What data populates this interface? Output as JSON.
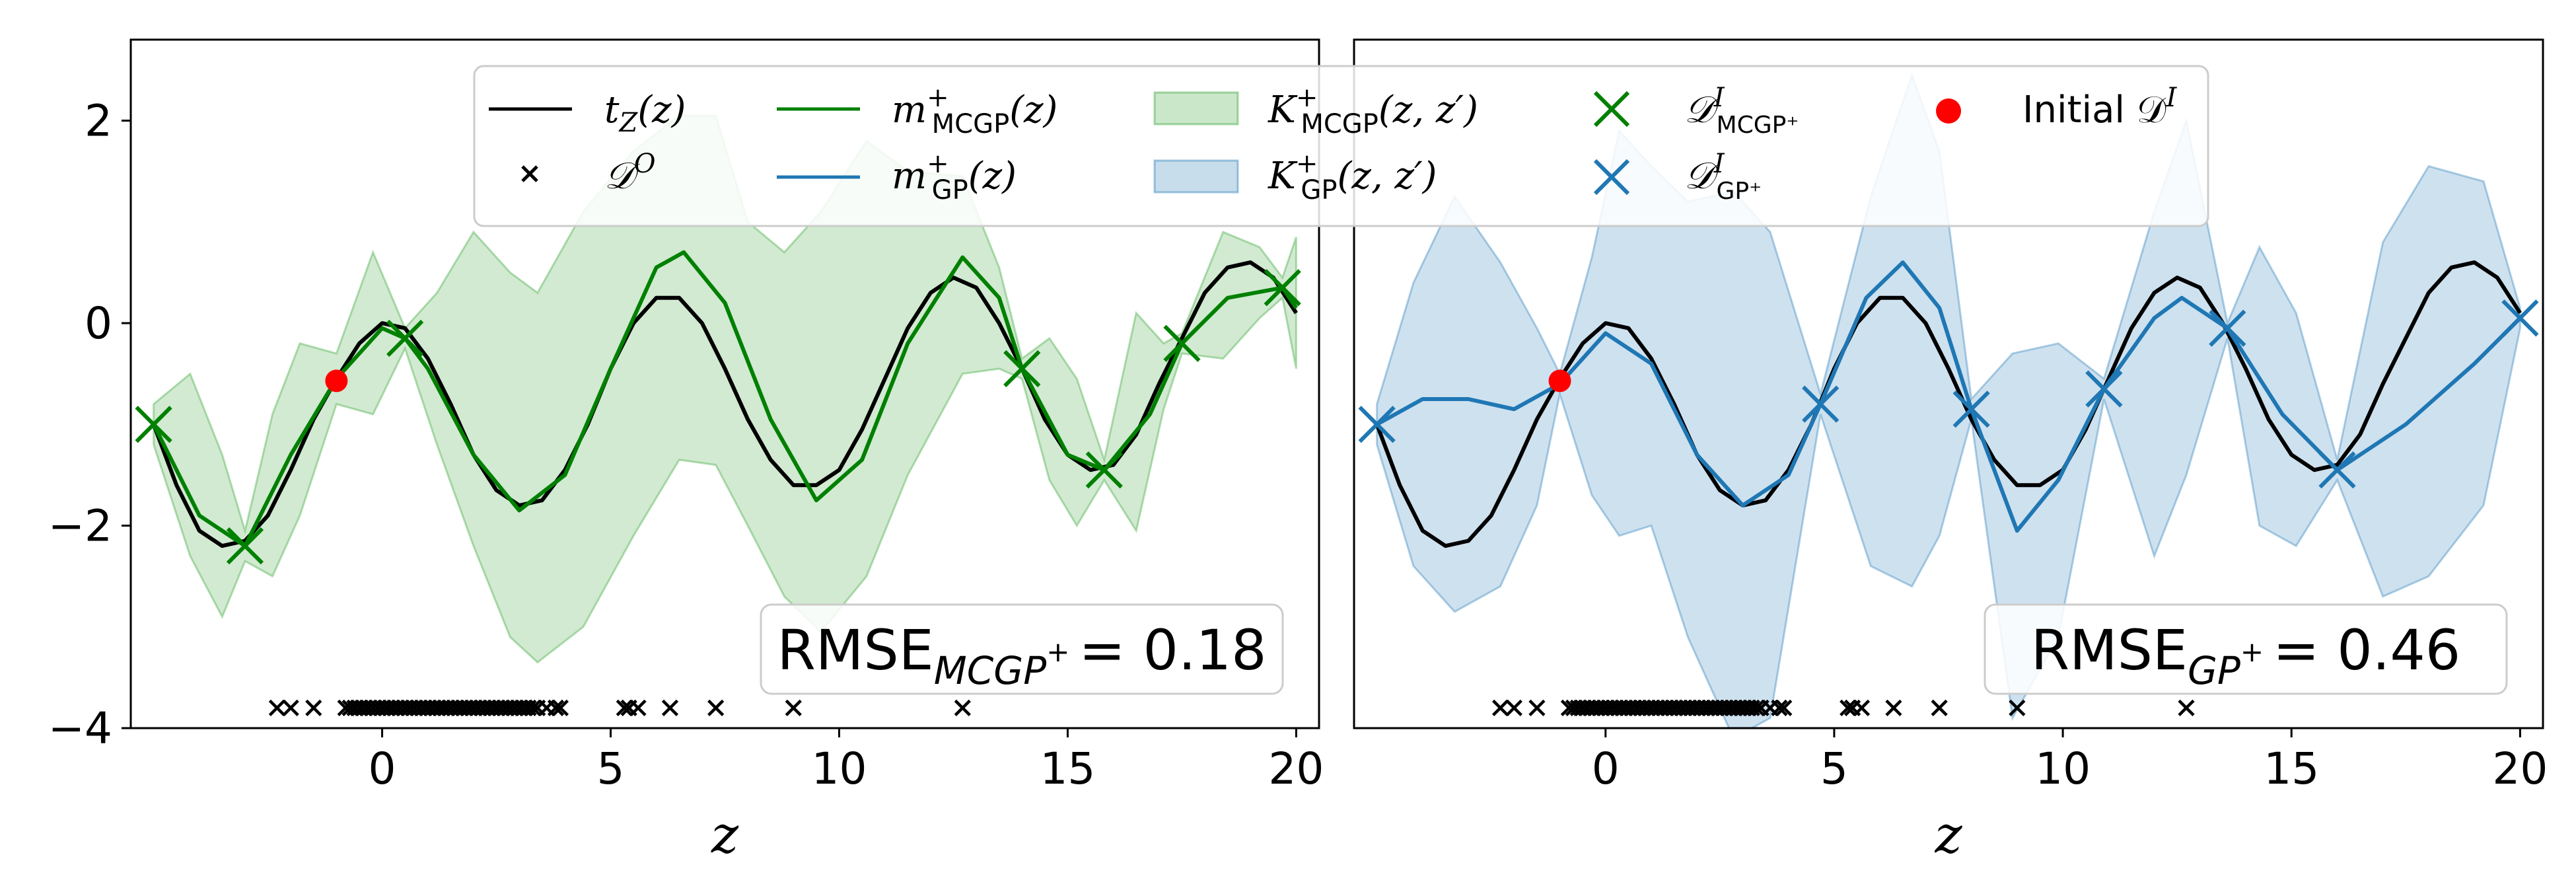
{
  "chart_data": [
    {
      "type": "line",
      "panel": "MCGP",
      "xlabel": "z",
      "ylabel": "",
      "xlim": [
        -5.5,
        20.5
      ],
      "ylim": [
        -4,
        2.8
      ],
      "xticks": [
        0,
        5,
        10,
        15,
        20
      ],
      "yticks": [
        -4,
        -2,
        0,
        2
      ],
      "xtick_labels": [
        "0",
        "5",
        "10",
        "15",
        "20"
      ],
      "ytick_labels": [
        "−4",
        "−2",
        "0",
        "2"
      ],
      "grid": false,
      "rmse": {
        "label": "RMSE",
        "sub": "MCGP",
        "sup": "+",
        "value": "= 0.18"
      },
      "true_fn_color": "#000000",
      "mean_color": "#008000",
      "band_color": "#2ca02c",
      "queries": [
        [
          -5,
          -1.0
        ],
        [
          -3,
          -2.2
        ],
        [
          0.5,
          -0.15
        ],
        [
          14,
          -0.45
        ],
        [
          15.8,
          -1.45
        ],
        [
          17.5,
          -0.2
        ],
        [
          19.7,
          0.35
        ]
      ],
      "mean": [
        [
          -5,
          -1.0
        ],
        [
          -4,
          -1.9
        ],
        [
          -3,
          -2.2
        ],
        [
          -2,
          -1.3
        ],
        [
          -1,
          -0.55
        ],
        [
          0,
          -0.05
        ],
        [
          0.5,
          -0.15
        ],
        [
          1,
          -0.45
        ],
        [
          2,
          -1.3
        ],
        [
          3,
          -1.85
        ],
        [
          4,
          -1.5
        ],
        [
          5,
          -0.45
        ],
        [
          6,
          0.55
        ],
        [
          6.6,
          0.7
        ],
        [
          7.5,
          0.2
        ],
        [
          8.5,
          -0.95
        ],
        [
          9.5,
          -1.75
        ],
        [
          10.5,
          -1.35
        ],
        [
          11.5,
          -0.2
        ],
        [
          12.7,
          0.65
        ],
        [
          13.5,
          0.25
        ],
        [
          14,
          -0.45
        ],
        [
          15,
          -1.3
        ],
        [
          15.8,
          -1.45
        ],
        [
          16.8,
          -0.9
        ],
        [
          17.5,
          -0.2
        ],
        [
          18.5,
          0.25
        ],
        [
          19.7,
          0.35
        ],
        [
          20,
          0.15
        ]
      ],
      "band_upper": [
        [
          -5,
          -0.8
        ],
        [
          -4.2,
          -0.5
        ],
        [
          -3.5,
          -1.3
        ],
        [
          -3,
          -2.05
        ],
        [
          -2.4,
          -0.9
        ],
        [
          -1.8,
          -0.2
        ],
        [
          -1,
          -0.3
        ],
        [
          -0.2,
          0.7
        ],
        [
          0.5,
          -0.05
        ],
        [
          1.2,
          0.3
        ],
        [
          2,
          0.9
        ],
        [
          2.8,
          0.5
        ],
        [
          3.4,
          0.3
        ],
        [
          4.4,
          1.1
        ],
        [
          5.5,
          1.7
        ],
        [
          6.5,
          2.05
        ],
        [
          7.3,
          2.05
        ],
        [
          8,
          1.0
        ],
        [
          8.8,
          0.7
        ],
        [
          9.6,
          1.1
        ],
        [
          10.6,
          1.8
        ],
        [
          11.5,
          1.5
        ],
        [
          12.7,
          1.45
        ],
        [
          13.5,
          0.55
        ],
        [
          14,
          -0.35
        ],
        [
          14.6,
          -0.15
        ],
        [
          15.2,
          -0.55
        ],
        [
          15.8,
          -1.35
        ],
        [
          16.5,
          0.1
        ],
        [
          17.1,
          -0.2
        ],
        [
          17.5,
          -0.1
        ],
        [
          18.4,
          0.9
        ],
        [
          19.2,
          0.75
        ],
        [
          19.7,
          0.45
        ],
        [
          20,
          0.85
        ]
      ],
      "band_lower": [
        [
          20,
          -0.45
        ],
        [
          19.7,
          0.25
        ],
        [
          19.2,
          0.05
        ],
        [
          18.4,
          -0.35
        ],
        [
          17.5,
          -0.3
        ],
        [
          17.1,
          -0.85
        ],
        [
          16.5,
          -2.05
        ],
        [
          15.8,
          -1.55
        ],
        [
          15.2,
          -2.0
        ],
        [
          14.6,
          -1.55
        ],
        [
          14,
          -0.55
        ],
        [
          13.5,
          -0.45
        ],
        [
          12.7,
          -0.5
        ],
        [
          11.5,
          -1.5
        ],
        [
          10.6,
          -2.5
        ],
        [
          9.6,
          -3.05
        ],
        [
          8.8,
          -2.7
        ],
        [
          8,
          -2.0
        ],
        [
          7.3,
          -1.4
        ],
        [
          6.5,
          -1.35
        ],
        [
          5.5,
          -2.1
        ],
        [
          4.4,
          -3.0
        ],
        [
          3.4,
          -3.35
        ],
        [
          2.8,
          -3.1
        ],
        [
          2,
          -2.2
        ],
        [
          1.2,
          -1.2
        ],
        [
          0.5,
          -0.25
        ],
        [
          -0.2,
          -0.9
        ],
        [
          -1,
          -0.8
        ],
        [
          -1.8,
          -1.9
        ],
        [
          -2.4,
          -2.5
        ],
        [
          -3,
          -2.35
        ],
        [
          -3.5,
          -2.9
        ],
        [
          -4.2,
          -2.3
        ],
        [
          -5,
          -1.2
        ]
      ]
    },
    {
      "type": "line",
      "panel": "GP",
      "xlabel": "z",
      "ylabel": "",
      "xlim": [
        -5.5,
        20.5
      ],
      "ylim": [
        -4,
        2.8
      ],
      "xticks": [
        0,
        5,
        10,
        15,
        20
      ],
      "xtick_labels": [
        "0",
        "5",
        "10",
        "15",
        "20"
      ],
      "grid": false,
      "rmse": {
        "label": "RMSE",
        "sub": "GP",
        "sup": "+",
        "value": "= 0.46"
      },
      "true_fn_color": "#000000",
      "mean_color": "#1f77b4",
      "band_color": "#1f77b4",
      "queries": [
        [
          -5,
          -1.0
        ],
        [
          4.7,
          -0.8
        ],
        [
          8.0,
          -0.85
        ],
        [
          10.9,
          -0.65
        ],
        [
          13.6,
          -0.05
        ],
        [
          16,
          -1.45
        ],
        [
          20,
          0.05
        ]
      ],
      "mean": [
        [
          -5,
          -1.0
        ],
        [
          -4,
          -0.75
        ],
        [
          -3,
          -0.75
        ],
        [
          -2,
          -0.85
        ],
        [
          -1,
          -0.6
        ],
        [
          0,
          -0.1
        ],
        [
          1,
          -0.4
        ],
        [
          2,
          -1.3
        ],
        [
          3,
          -1.8
        ],
        [
          4,
          -1.5
        ],
        [
          4.7,
          -0.8
        ],
        [
          5.7,
          0.25
        ],
        [
          6.5,
          0.6
        ],
        [
          7.3,
          0.15
        ],
        [
          8.0,
          -0.85
        ],
        [
          9,
          -2.05
        ],
        [
          9.9,
          -1.55
        ],
        [
          10.9,
          -0.65
        ],
        [
          12,
          0.05
        ],
        [
          12.6,
          0.25
        ],
        [
          13.6,
          -0.05
        ],
        [
          14.8,
          -0.9
        ],
        [
          16,
          -1.45
        ],
        [
          17.5,
          -1.0
        ],
        [
          19,
          -0.4
        ],
        [
          20,
          0.05
        ]
      ],
      "band_upper": [
        [
          -5,
          -0.8
        ],
        [
          -4.2,
          0.4
        ],
        [
          -3.3,
          1.25
        ],
        [
          -2.3,
          0.6
        ],
        [
          -1.5,
          -0.05
        ],
        [
          -1,
          -0.5
        ],
        [
          -0.3,
          0.65
        ],
        [
          0.3,
          1.9
        ],
        [
          1.0,
          1.55
        ],
        [
          1.8,
          1.2
        ],
        [
          2.8,
          1.3
        ],
        [
          3.6,
          0.9
        ],
        [
          4.7,
          -0.7
        ],
        [
          5.8,
          1.25
        ],
        [
          6.7,
          2.45
        ],
        [
          7.3,
          1.7
        ],
        [
          8.0,
          -0.75
        ],
        [
          8.9,
          -0.3
        ],
        [
          9.9,
          -0.2
        ],
        [
          10.9,
          -0.55
        ],
        [
          12,
          1.1
        ],
        [
          12.7,
          2.0
        ],
        [
          13.6,
          0.0
        ],
        [
          14.3,
          0.75
        ],
        [
          15.1,
          0.1
        ],
        [
          16,
          -1.35
        ],
        [
          17,
          0.8
        ],
        [
          18,
          1.55
        ],
        [
          19.2,
          1.4
        ],
        [
          20,
          0.15
        ]
      ],
      "band_lower": [
        [
          20,
          -0.05
        ],
        [
          19.2,
          -1.8
        ],
        [
          18,
          -2.5
        ],
        [
          17,
          -2.7
        ],
        [
          16,
          -1.55
        ],
        [
          15.1,
          -2.2
        ],
        [
          14.3,
          -2.0
        ],
        [
          13.6,
          -0.15
        ],
        [
          12.7,
          -1.5
        ],
        [
          12,
          -2.3
        ],
        [
          10.9,
          -0.75
        ],
        [
          9.9,
          -3.1
        ],
        [
          8.9,
          -3.9
        ],
        [
          8.0,
          -0.95
        ],
        [
          7.3,
          -2.1
        ],
        [
          6.7,
          -2.6
        ],
        [
          5.8,
          -2.4
        ],
        [
          4.7,
          -0.9
        ],
        [
          3.6,
          -3.9
        ],
        [
          2.8,
          -4.1
        ],
        [
          1.8,
          -3.1
        ],
        [
          1.0,
          -2.0
        ],
        [
          0.3,
          -2.1
        ],
        [
          -0.3,
          -1.7
        ],
        [
          -1,
          -0.7
        ],
        [
          -1.5,
          -1.8
        ],
        [
          -2.3,
          -2.6
        ],
        [
          -3.3,
          -2.85
        ],
        [
          -4.2,
          -2.4
        ],
        [
          -5,
          -1.2
        ]
      ]
    }
  ],
  "true_fn": [
    [
      -5,
      -1.0
    ],
    [
      -4.5,
      -1.6
    ],
    [
      -4,
      -2.05
    ],
    [
      -3.5,
      -2.2
    ],
    [
      -3,
      -2.15
    ],
    [
      -2.5,
      -1.9
    ],
    [
      -2,
      -1.45
    ],
    [
      -1.5,
      -0.95
    ],
    [
      -1,
      -0.55
    ],
    [
      -0.5,
      -0.2
    ],
    [
      0,
      0.0
    ],
    [
      0.5,
      -0.05
    ],
    [
      1,
      -0.35
    ],
    [
      1.5,
      -0.8
    ],
    [
      2,
      -1.3
    ],
    [
      2.5,
      -1.65
    ],
    [
      3,
      -1.8
    ],
    [
      3.5,
      -1.75
    ],
    [
      4,
      -1.45
    ],
    [
      4.5,
      -1.0
    ],
    [
      5,
      -0.45
    ],
    [
      5.5,
      0.0
    ],
    [
      6,
      0.25
    ],
    [
      6.5,
      0.25
    ],
    [
      7,
      0.0
    ],
    [
      7.5,
      -0.45
    ],
    [
      8,
      -0.95
    ],
    [
      8.5,
      -1.35
    ],
    [
      9,
      -1.6
    ],
    [
      9.5,
      -1.6
    ],
    [
      10,
      -1.45
    ],
    [
      10.5,
      -1.05
    ],
    [
      11,
      -0.55
    ],
    [
      11.5,
      -0.05
    ],
    [
      12,
      0.3
    ],
    [
      12.5,
      0.45
    ],
    [
      13,
      0.35
    ],
    [
      13.5,
      0.0
    ],
    [
      14,
      -0.45
    ],
    [
      14.5,
      -0.95
    ],
    [
      15,
      -1.3
    ],
    [
      15.5,
      -1.45
    ],
    [
      16,
      -1.4
    ],
    [
      16.5,
      -1.1
    ],
    [
      17,
      -0.6
    ],
    [
      17.5,
      -0.15
    ],
    [
      18,
      0.3
    ],
    [
      18.5,
      0.55
    ],
    [
      19,
      0.6
    ],
    [
      19.5,
      0.45
    ],
    [
      20,
      0.1
    ]
  ],
  "initial_point": [
    -1,
    -0.57
  ],
  "observations": [
    -2.3,
    -2.0,
    -1.5,
    -0.8,
    -0.7,
    -0.6,
    -0.5,
    -0.4,
    -0.3,
    -0.2,
    -0.1,
    0,
    0.1,
    0.2,
    0.3,
    0.4,
    0.5,
    0.6,
    0.7,
    0.8,
    0.9,
    1.0,
    1.1,
    1.2,
    1.3,
    1.4,
    1.5,
    1.6,
    1.7,
    1.8,
    1.9,
    2.0,
    2.1,
    2.2,
    2.3,
    2.4,
    2.5,
    2.6,
    2.7,
    2.8,
    2.9,
    3.0,
    3.1,
    3.2,
    3.3,
    3.4,
    3.6,
    3.8,
    3.9,
    5.3,
    5.4,
    5.6,
    6.3,
    7.3,
    9.0,
    12.7
  ],
  "obs_y": -3.8,
  "legend": {
    "tz": "t",
    "tz_sub": "Z",
    "tz_args": "(z)",
    "do": "𝒟",
    "do_sup": "O",
    "m_mcgp": "m",
    "m_mcgp_sup": "+",
    "m_mcgp_sub": "MCGP",
    "m_mcgp_args": "(z)",
    "m_gp": "m",
    "m_gp_sup": "+",
    "m_gp_sub": "GP",
    "m_gp_args": "(z)",
    "k_mcgp": "K",
    "k_mcgp_sup": "+",
    "k_mcgp_sub": "MCGP",
    "k_mcgp_args": "(z, z′)",
    "k_gp": "K",
    "k_gp_sup": "+",
    "k_gp_sub": "GP",
    "k_gp_args": "(z, z′)",
    "dl_mcgp": "𝒟",
    "dl_mcgp_sup": "I",
    "dl_mcgp_sub": "MCGP⁺",
    "dl_gp": "𝒟",
    "dl_gp_sup": "I",
    "dl_gp_sub": "GP⁺",
    "initial": "Initial 𝒟",
    "initial_sup": "I"
  }
}
